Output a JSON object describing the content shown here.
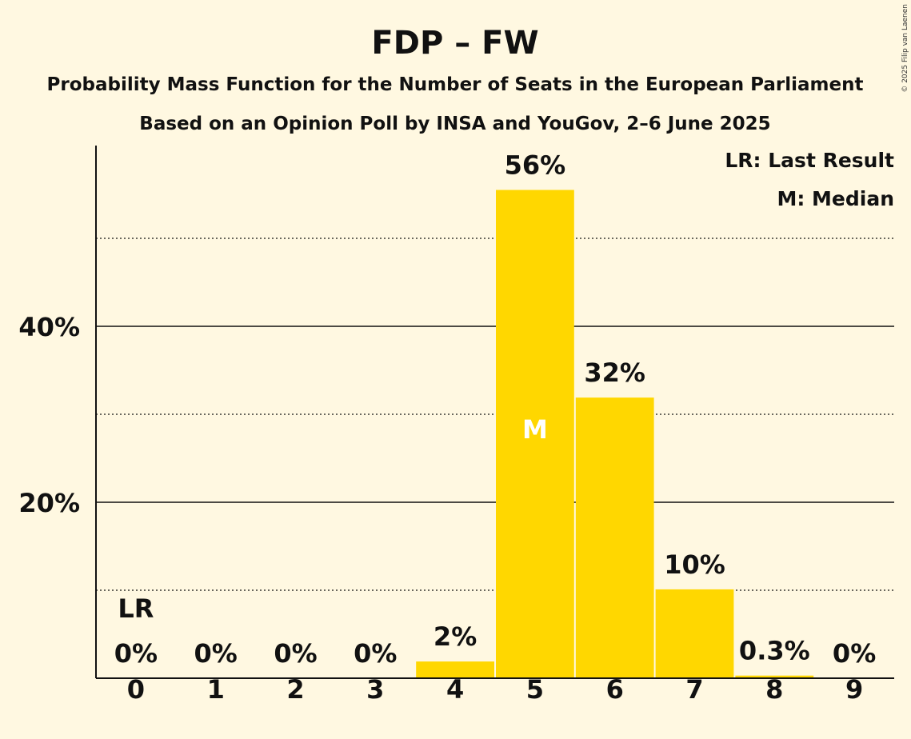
{
  "copyright": "© 2025 Filip van Laenen",
  "legend": {
    "last_result": "LR: Last Result",
    "median": "M: Median"
  },
  "chart_data": {
    "type": "bar",
    "title": "FDP – FW",
    "subtitle": "Probability Mass Function for the Number of Seats in the European Parliament",
    "subtitle2": "Based on an Opinion Poll by INSA and YouGov, 2–6 June 2025",
    "xlabel": "",
    "ylabel": "",
    "categories": [
      "0",
      "1",
      "2",
      "3",
      "4",
      "5",
      "6",
      "7",
      "8",
      "9"
    ],
    "values": [
      0,
      0,
      0,
      0,
      1.9,
      55.5,
      31.9,
      10.1,
      0.3,
      0
    ],
    "value_labels": [
      "0%",
      "0%",
      "0%",
      "0%",
      "2%",
      "56%",
      "32%",
      "10%",
      "0.3%",
      "0%"
    ],
    "ylim": [
      0,
      60
    ],
    "y_ticks": [
      20,
      40
    ],
    "y_tick_labels": [
      "20%",
      "40%"
    ],
    "minor_gridlines": [
      10,
      30,
      50
    ],
    "last_result_category": "0",
    "last_result_label": "LR",
    "median_category": "5",
    "median_label": "M",
    "bar_color": "#FFD700",
    "background_color": "#FFF8E1",
    "legend_position": "top-right",
    "grid": true
  }
}
